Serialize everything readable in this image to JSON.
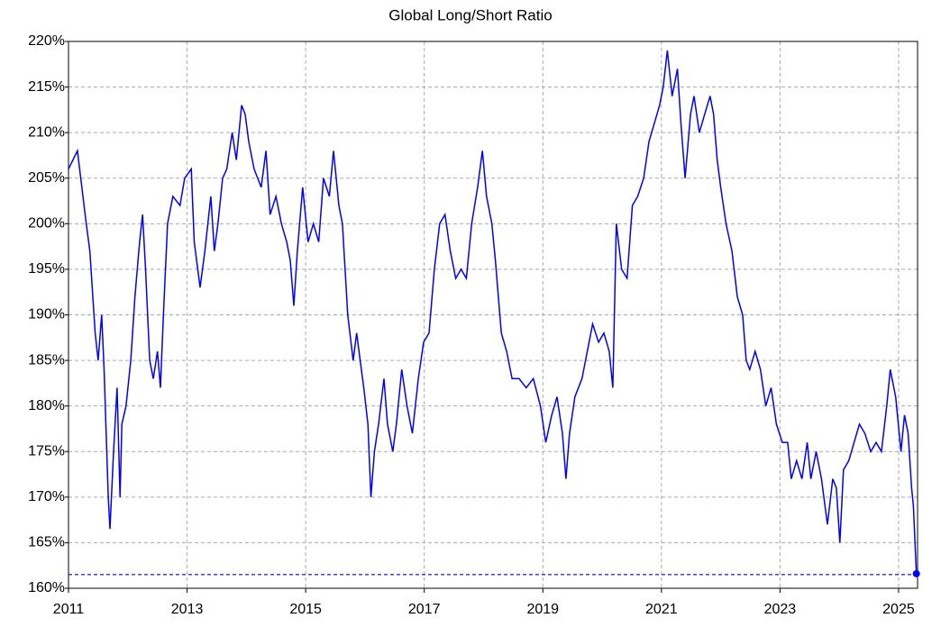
{
  "chart_data": {
    "type": "line",
    "title": "Global Long/Short Ratio",
    "x": [
      2011.0,
      2011.15,
      2011.3,
      2011.36,
      2011.45,
      2011.5,
      2011.56,
      2011.6,
      2011.67,
      2011.7,
      2011.76,
      2011.82,
      2011.87,
      2011.9,
      2011.97,
      2012.05,
      2012.12,
      2012.2,
      2012.25,
      2012.3,
      2012.37,
      2012.43,
      2012.5,
      2012.55,
      2012.6,
      2012.67,
      2012.76,
      2012.88,
      2012.96,
      2013.07,
      2013.12,
      2013.22,
      2013.3,
      2013.4,
      2013.46,
      2013.52,
      2013.6,
      2013.67,
      2013.76,
      2013.83,
      2013.92,
      2013.98,
      2014.04,
      2014.13,
      2014.25,
      2014.33,
      2014.4,
      2014.5,
      2014.59,
      2014.68,
      2014.74,
      2014.8,
      2014.86,
      2014.95,
      2015.04,
      2015.13,
      2015.22,
      2015.3,
      2015.4,
      2015.47,
      2015.56,
      2015.62,
      2015.71,
      2015.8,
      2015.86,
      2015.92,
      2015.98,
      2016.05,
      2016.1,
      2016.16,
      2016.23,
      2016.32,
      2016.38,
      2016.47,
      2016.53,
      2016.62,
      2016.71,
      2016.8,
      2016.9,
      2016.99,
      2017.08,
      2017.17,
      2017.26,
      2017.35,
      2017.44,
      2017.53,
      2017.62,
      2017.71,
      2017.8,
      2017.9,
      2017.98,
      2018.05,
      2018.14,
      2018.2,
      2018.3,
      2018.39,
      2018.48,
      2018.6,
      2018.72,
      2018.84,
      2018.96,
      2019.05,
      2019.15,
      2019.24,
      2019.33,
      2019.39,
      2019.45,
      2019.54,
      2019.66,
      2019.75,
      2019.84,
      2019.94,
      2020.03,
      2020.12,
      2020.18,
      2020.24,
      2020.33,
      2020.42,
      2020.51,
      2020.6,
      2020.7,
      2020.79,
      2020.88,
      2020.97,
      2021.03,
      2021.1,
      2021.18,
      2021.27,
      2021.33,
      2021.4,
      2021.49,
      2021.55,
      2021.64,
      2021.73,
      2021.82,
      2021.88,
      2021.94,
      2022.0,
      2022.09,
      2022.19,
      2022.28,
      2022.37,
      2022.43,
      2022.49,
      2022.58,
      2022.67,
      2022.76,
      2022.85,
      2022.94,
      2023.04,
      2023.13,
      2023.19,
      2023.28,
      2023.37,
      2023.46,
      2023.52,
      2023.61,
      2023.7,
      2023.8,
      2023.89,
      2023.95,
      2024.01,
      2024.07,
      2024.16,
      2024.25,
      2024.34,
      2024.43,
      2024.53,
      2024.62,
      2024.71,
      2024.8,
      2024.86,
      2024.95,
      2025.04,
      2025.1,
      2025.16,
      2025.22,
      2025.25,
      2025.3
    ],
    "series": [
      {
        "color": "#0000ff",
        "values": [
          206,
          208,
          200,
          197,
          188,
          185,
          190,
          184,
          170,
          166.5,
          175,
          182,
          170,
          178,
          180,
          185,
          192,
          198,
          201,
          195,
          185,
          183,
          186,
          182,
          190,
          200,
          203,
          202,
          205,
          206,
          198,
          193,
          197,
          203,
          197,
          200,
          205,
          206,
          210,
          207,
          213,
          212,
          209,
          206,
          204,
          208,
          201,
          203,
          200,
          198,
          196,
          191,
          197,
          204,
          198,
          200,
          198,
          205,
          203,
          208,
          202,
          200,
          190,
          185,
          188,
          185,
          182,
          178,
          170,
          175,
          178,
          183,
          178,
          175,
          178,
          184,
          180,
          177,
          183,
          187,
          188,
          195,
          200,
          201,
          197,
          194,
          195,
          194,
          200,
          204,
          208,
          203,
          200,
          196,
          188,
          186,
          183,
          183,
          182,
          183,
          180,
          176,
          179,
          181,
          177,
          172,
          177,
          181,
          183,
          186,
          189,
          187,
          188,
          186,
          182,
          200,
          195,
          194,
          202,
          203,
          205,
          209,
          211,
          213,
          215,
          219,
          214,
          217,
          211,
          205,
          212,
          214,
          210,
          212,
          214,
          212,
          207,
          204,
          200,
          197,
          192,
          190,
          185,
          184,
          186,
          184,
          180,
          182,
          178,
          176,
          176,
          172,
          174,
          172,
          176,
          172,
          175,
          172,
          167,
          172,
          171,
          165,
          173,
          174,
          176,
          178,
          177,
          175,
          176,
          175,
          180,
          184,
          181,
          175,
          179,
          177,
          171,
          169,
          161.6
        ]
      }
    ],
    "hline": 161.5,
    "hline_color": "#0000ff",
    "xlim": [
      2011,
      2025.32
    ],
    "xticks": [
      2011,
      2013,
      2015,
      2017,
      2019,
      2021,
      2023,
      2025
    ],
    "ylim": [
      160,
      220
    ],
    "yticks": [
      {
        "value": 160,
        "label": "160%"
      },
      {
        "value": 165,
        "label": "165%"
      },
      {
        "value": 170,
        "label": "170%"
      },
      {
        "value": 175,
        "label": "175%"
      },
      {
        "value": 180,
        "label": "180%"
      },
      {
        "value": 185,
        "label": "185%"
      },
      {
        "value": 190,
        "label": "190%"
      },
      {
        "value": 195,
        "label": "195%"
      },
      {
        "value": 200,
        "label": "200%"
      },
      {
        "value": 205,
        "label": "205%"
      },
      {
        "value": 210,
        "label": "210%"
      },
      {
        "value": 215,
        "label": "215%"
      },
      {
        "value": 220,
        "label": "220%"
      }
    ],
    "grid": true
  }
}
